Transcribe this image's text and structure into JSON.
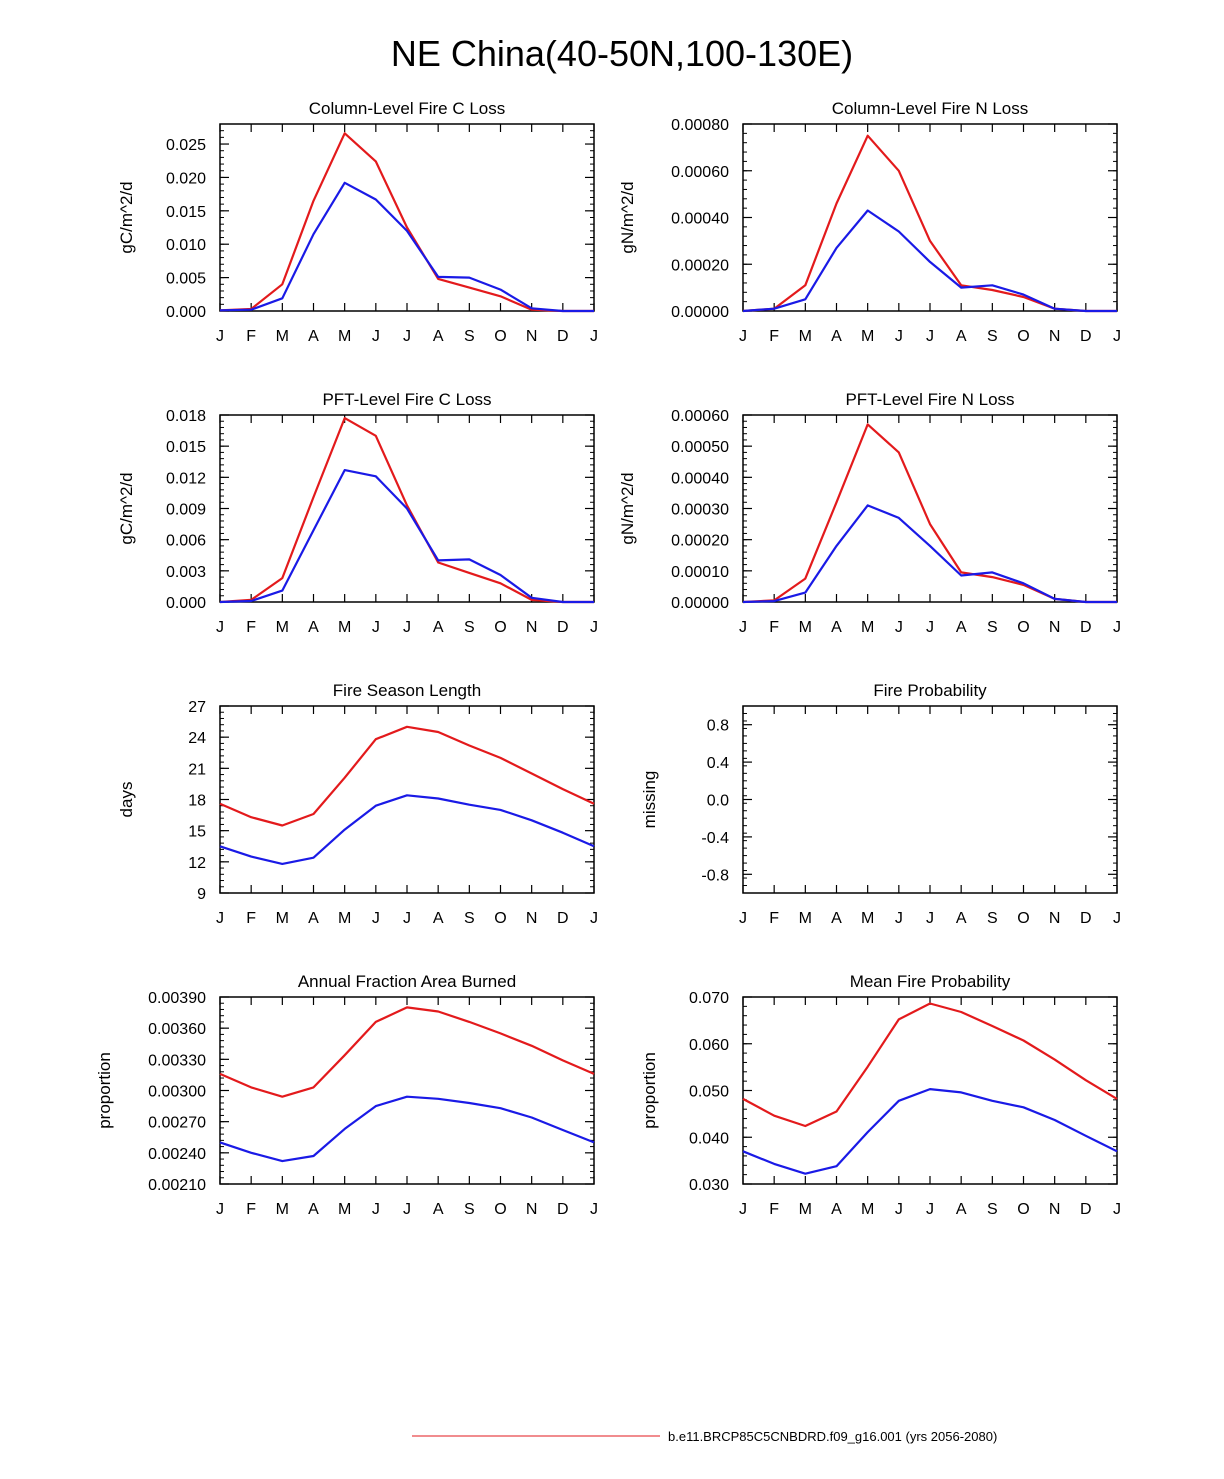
{
  "figure_title": "NE China(40-50N,100-130E)",
  "legend": {
    "items": [
      {
        "label": "b.e11.BRCP85C5CNBDRD.f09_g16.001 (yrs 2056-2080)",
        "color": "#e31a1c"
      }
    ]
  },
  "series_colors": {
    "red": "#e31a1c",
    "blue": "#1a1ae6"
  },
  "chart_data": [
    {
      "type": "line",
      "title": "Column-Level Fire C Loss",
      "ylabel": "gC/m^2/d",
      "categories": [
        "J",
        "F",
        "M",
        "A",
        "M",
        "J",
        "J",
        "A",
        "S",
        "O",
        "N",
        "D",
        "J"
      ],
      "ylim": [
        0,
        0.028
      ],
      "yticks": [
        "0.000",
        "0.005",
        "0.010",
        "0.015",
        "0.020",
        "0.025"
      ],
      "ytick_values": [
        0,
        0.005,
        0.01,
        0.015,
        0.02,
        0.025
      ],
      "series": [
        {
          "name": "red",
          "color": "#e31a1c",
          "values": [
            0.0001,
            0.0003,
            0.004,
            0.0165,
            0.0266,
            0.0224,
            0.0125,
            0.0048,
            0.0035,
            0.0022,
            0.0002,
            0.0,
            0.0
          ]
        },
        {
          "name": "blue",
          "color": "#1a1ae6",
          "values": [
            0.0001,
            0.0002,
            0.0019,
            0.0115,
            0.0192,
            0.0167,
            0.012,
            0.0051,
            0.005,
            0.0032,
            0.0004,
            0.0,
            0.0
          ]
        }
      ]
    },
    {
      "type": "line",
      "title": "Column-Level Fire N Loss",
      "ylabel": "gN/m^2/d",
      "categories": [
        "J",
        "F",
        "M",
        "A",
        "M",
        "J",
        "J",
        "A",
        "S",
        "O",
        "N",
        "D",
        "J"
      ],
      "ylim": [
        0,
        0.0008
      ],
      "yticks": [
        "0.00000",
        "0.00020",
        "0.00040",
        "0.00060",
        "0.00080"
      ],
      "ytick_values": [
        0,
        0.0002,
        0.0004,
        0.0006,
        0.0008
      ],
      "series": [
        {
          "name": "red",
          "color": "#e31a1c",
          "values": [
            0.0,
            1e-05,
            0.00011,
            0.00046,
            0.00075,
            0.0006,
            0.0003,
            0.00011,
            9e-05,
            6e-05,
            1e-05,
            0.0,
            0.0
          ]
        },
        {
          "name": "blue",
          "color": "#1a1ae6",
          "values": [
            0.0,
            1e-05,
            5e-05,
            0.00027,
            0.00043,
            0.00034,
            0.00021,
            0.0001,
            0.00011,
            7e-05,
            1e-05,
            0.0,
            0.0
          ]
        }
      ]
    },
    {
      "type": "line",
      "title": "PFT-Level Fire C Loss",
      "ylabel": "gC/m^2/d",
      "categories": [
        "J",
        "F",
        "M",
        "A",
        "M",
        "J",
        "J",
        "A",
        "S",
        "O",
        "N",
        "D",
        "J"
      ],
      "ylim": [
        0,
        0.018
      ],
      "yticks": [
        "0.000",
        "0.003",
        "0.006",
        "0.009",
        "0.012",
        "0.015",
        "0.018"
      ],
      "ytick_values": [
        0,
        0.003,
        0.006,
        0.009,
        0.012,
        0.015,
        0.018
      ],
      "series": [
        {
          "name": "red",
          "color": "#e31a1c",
          "values": [
            0.0,
            0.0002,
            0.0023,
            0.0101,
            0.0177,
            0.016,
            0.0093,
            0.0038,
            0.0028,
            0.0018,
            0.0002,
            0.0,
            0.0
          ]
        },
        {
          "name": "blue",
          "color": "#1a1ae6",
          "values": [
            0.0,
            0.0001,
            0.0011,
            0.0069,
            0.0127,
            0.0121,
            0.009,
            0.004,
            0.0041,
            0.0026,
            0.0004,
            0.0,
            0.0
          ]
        }
      ]
    },
    {
      "type": "line",
      "title": "PFT-Level Fire N Loss",
      "ylabel": "gN/m^2/d",
      "categories": [
        "J",
        "F",
        "M",
        "A",
        "M",
        "J",
        "J",
        "A",
        "S",
        "O",
        "N",
        "D",
        "J"
      ],
      "ylim": [
        0,
        0.0006
      ],
      "yticks": [
        "0.00000",
        "0.00010",
        "0.00020",
        "0.00030",
        "0.00040",
        "0.00050",
        "0.00060"
      ],
      "ytick_values": [
        0,
        0.0001,
        0.0002,
        0.0003,
        0.0004,
        0.0005,
        0.0006
      ],
      "series": [
        {
          "name": "red",
          "color": "#e31a1c",
          "values": [
            0.0,
            5e-06,
            7.5e-05,
            0.00032,
            0.00057,
            0.00048,
            0.00025,
            9.5e-05,
            8e-05,
            5.5e-05,
            1e-05,
            0.0,
            0.0
          ]
        },
        {
          "name": "blue",
          "color": "#1a1ae6",
          "values": [
            0.0,
            3e-06,
            3e-05,
            0.00018,
            0.00031,
            0.00027,
            0.00018,
            8.5e-05,
            9.5e-05,
            6e-05,
            1e-05,
            0.0,
            0.0
          ]
        }
      ]
    },
    {
      "type": "line",
      "title": "Fire Season Length",
      "ylabel": "days",
      "categories": [
        "J",
        "F",
        "M",
        "A",
        "M",
        "J",
        "J",
        "A",
        "S",
        "O",
        "N",
        "D",
        "J"
      ],
      "ylim": [
        9,
        27
      ],
      "yticks": [
        "9",
        "12",
        "15",
        "18",
        "21",
        "24",
        "27"
      ],
      "ytick_values": [
        9,
        12,
        15,
        18,
        21,
        24,
        27
      ],
      "series": [
        {
          "name": "red",
          "color": "#e31a1c",
          "values": [
            17.6,
            16.3,
            15.5,
            16.6,
            20.1,
            23.8,
            25.0,
            24.5,
            23.2,
            22.0,
            20.5,
            19.0,
            17.6
          ]
        },
        {
          "name": "blue",
          "color": "#1a1ae6",
          "values": [
            13.5,
            12.5,
            11.8,
            12.4,
            15.1,
            17.4,
            18.4,
            18.1,
            17.5,
            17.0,
            16.0,
            14.8,
            13.5
          ]
        }
      ]
    },
    {
      "type": "line",
      "title": "Fire Probability",
      "ylabel": "missing",
      "categories": [
        "J",
        "F",
        "M",
        "A",
        "M",
        "J",
        "J",
        "A",
        "S",
        "O",
        "N",
        "D",
        "J"
      ],
      "ylim": [
        -1.0,
        1.0
      ],
      "yticks": [
        "-0.8",
        "-0.4",
        "0.0",
        "0.4",
        "0.8"
      ],
      "ytick_values": [
        -0.8,
        -0.4,
        0.0,
        0.4,
        0.8
      ],
      "series": []
    },
    {
      "type": "line",
      "title": "Annual Fraction Area Burned",
      "ylabel": "proportion",
      "categories": [
        "J",
        "F",
        "M",
        "A",
        "M",
        "J",
        "J",
        "A",
        "S",
        "O",
        "N",
        "D",
        "J"
      ],
      "ylim": [
        0.0021,
        0.0039
      ],
      "yticks": [
        "0.00210",
        "0.00240",
        "0.00270",
        "0.00300",
        "0.00330",
        "0.00360",
        "0.00390"
      ],
      "ytick_values": [
        0.0021,
        0.0024,
        0.0027,
        0.003,
        0.0033,
        0.0036,
        0.0039
      ],
      "series": [
        {
          "name": "red",
          "color": "#e31a1c",
          "values": [
            0.00316,
            0.00303,
            0.00294,
            0.00303,
            0.00334,
            0.00366,
            0.0038,
            0.00376,
            0.00366,
            0.00355,
            0.00343,
            0.00329,
            0.00316
          ]
        },
        {
          "name": "blue",
          "color": "#1a1ae6",
          "values": [
            0.0025,
            0.0024,
            0.00232,
            0.00237,
            0.00263,
            0.00285,
            0.00294,
            0.00292,
            0.00288,
            0.00283,
            0.00274,
            0.00262,
            0.0025
          ]
        }
      ]
    },
    {
      "type": "line",
      "title": "Mean Fire Probability",
      "ylabel": "proportion",
      "categories": [
        "J",
        "F",
        "M",
        "A",
        "M",
        "J",
        "J",
        "A",
        "S",
        "O",
        "N",
        "D",
        "J"
      ],
      "ylim": [
        0.03,
        0.07
      ],
      "yticks": [
        "0.030",
        "0.040",
        "0.050",
        "0.060",
        "0.070"
      ],
      "ytick_values": [
        0.03,
        0.04,
        0.05,
        0.06,
        0.07
      ],
      "series": [
        {
          "name": "red",
          "color": "#e31a1c",
          "values": [
            0.0482,
            0.0446,
            0.0424,
            0.0455,
            0.0551,
            0.0652,
            0.0686,
            0.0668,
            0.0638,
            0.0607,
            0.0566,
            0.0522,
            0.0482
          ]
        },
        {
          "name": "blue",
          "color": "#1a1ae6",
          "values": [
            0.037,
            0.0343,
            0.0322,
            0.0338,
            0.0411,
            0.0478,
            0.0503,
            0.0496,
            0.0478,
            0.0464,
            0.0437,
            0.0403,
            0.037
          ]
        }
      ]
    }
  ]
}
